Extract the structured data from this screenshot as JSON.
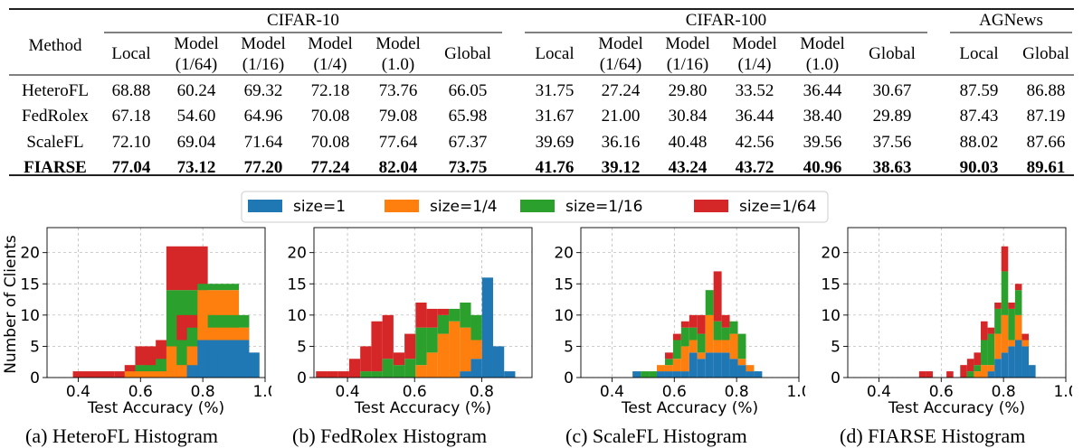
{
  "table": {
    "method_header": "Method",
    "groups": [
      {
        "name": "CIFAR-10",
        "cols": [
          "Local",
          "Model|(1/64)",
          "Model|(1/16)",
          "Model|(1/4)",
          "Model|(1.0)",
          "Global"
        ]
      },
      {
        "name": "CIFAR-100",
        "cols": [
          "Local",
          "Model|(1/64)",
          "Model|(1/16)",
          "Model|(1/4)",
          "Model|(1.0)",
          "Global"
        ]
      },
      {
        "name": "AGNews",
        "cols": [
          "Local",
          "Global"
        ]
      }
    ],
    "rows": [
      {
        "method": "HeteroFL",
        "bold": false,
        "values": [
          "68.88",
          "60.24",
          "69.32",
          "72.18",
          "73.76",
          "66.05",
          "31.75",
          "27.24",
          "29.80",
          "33.52",
          "36.44",
          "30.67",
          "87.59",
          "86.88"
        ]
      },
      {
        "method": "FedRolex",
        "bold": false,
        "values": [
          "67.18",
          "54.60",
          "64.96",
          "70.08",
          "79.08",
          "65.98",
          "31.67",
          "21.00",
          "30.84",
          "36.44",
          "38.40",
          "29.89",
          "87.43",
          "87.19"
        ]
      },
      {
        "method": "ScaleFL",
        "bold": false,
        "values": [
          "72.10",
          "69.04",
          "71.64",
          "70.08",
          "77.64",
          "67.37",
          "39.69",
          "36.16",
          "40.48",
          "42.56",
          "39.56",
          "37.56",
          "88.02",
          "87.66"
        ]
      },
      {
        "method": "FIARSE",
        "bold": true,
        "values": [
          "77.04",
          "73.12",
          "77.20",
          "77.24",
          "82.04",
          "73.75",
          "41.76",
          "39.12",
          "43.24",
          "43.72",
          "40.96",
          "38.63",
          "90.03",
          "89.61"
        ]
      }
    ]
  },
  "legend": [
    {
      "label": "size=1",
      "color": "#1f77b4"
    },
    {
      "label": "size=1/4",
      "color": "#ff7f0e"
    },
    {
      "label": "size=1/16",
      "color": "#2ca02c"
    },
    {
      "label": "size=1/64",
      "color": "#d62728"
    }
  ],
  "chart_data": [
    {
      "type": "bar",
      "stacked": true,
      "xlabel": "Test Accuracy (%)",
      "ylabel": "Number of Clients",
      "xlim": [
        0.3,
        1.0
      ],
      "ylim": [
        0,
        24
      ],
      "xticks": [
        "0.4",
        "0.6",
        "0.8",
        "1.0"
      ],
      "yticks": [
        "0",
        "5",
        "10",
        "15",
        "20"
      ],
      "caption": "(a) HeteroFL Histogram",
      "bins": [
        {
          "x": 0.383,
          "s1": 0,
          "s4": 0,
          "s16": 0,
          "s64": 1
        },
        {
          "x": 0.516,
          "s1": 0,
          "s4": 0,
          "s16": 0,
          "s64": 1
        },
        {
          "x": 0.549,
          "s1": 0,
          "s4": 1,
          "s16": 0,
          "s64": 1
        },
        {
          "x": 0.583,
          "s1": 0,
          "s4": 1,
          "s16": 1,
          "s64": 3
        },
        {
          "x": 0.616,
          "s1": 0,
          "s4": 1,
          "s16": 1,
          "s64": 2
        },
        {
          "x": 0.649,
          "s1": 0,
          "s4": 1,
          "s16": 2,
          "s64": 3
        },
        {
          "x": 0.683,
          "s1": 0,
          "s4": 5,
          "s16": 9,
          "s64": 7
        },
        {
          "x": 0.716,
          "s1": 0,
          "s4": 2,
          "s16": 4,
          "s64": 4
        },
        {
          "x": 0.749,
          "s1": 2,
          "s4": 3,
          "s16": 3,
          "s64": 1
        },
        {
          "x": 0.783,
          "s1": 6,
          "s4": 8,
          "s16": 1,
          "s64": 0
        },
        {
          "x": 0.816,
          "s1": 6,
          "s4": 2,
          "s16": 2,
          "s64": 0
        },
        {
          "x": 0.849,
          "s1": 4,
          "s4": 0,
          "s16": 0,
          "s64": 0
        }
      ]
    },
    {
      "type": "bar",
      "stacked": true,
      "xlabel": "Test Accuracy (%)",
      "ylabel": "",
      "xlim": [
        0.3,
        0.95
      ],
      "ylim": [
        0,
        24
      ],
      "xticks": [
        "0.4",
        "0.6",
        "0.8"
      ],
      "yticks": [
        "0",
        "5",
        "10",
        "15",
        "20"
      ],
      "caption": "(b) FedRolex Histogram",
      "bins": [
        {
          "x": 0.306,
          "s1": 0,
          "s4": 0,
          "s16": 0,
          "s64": 1
        },
        {
          "x": 0.339,
          "s1": 0,
          "s4": 0,
          "s16": 0,
          "s64": 1
        },
        {
          "x": 0.372,
          "s1": 0,
          "s4": 0,
          "s16": 0,
          "s64": 1
        },
        {
          "x": 0.405,
          "s1": 0,
          "s4": 0,
          "s16": 0,
          "s64": 3
        },
        {
          "x": 0.438,
          "s1": 0,
          "s4": 0,
          "s16": 1,
          "s64": 4
        },
        {
          "x": 0.471,
          "s1": 0,
          "s4": 0,
          "s16": 1,
          "s64": 8
        },
        {
          "x": 0.504,
          "s1": 0,
          "s4": 0,
          "s16": 3,
          "s64": 7
        },
        {
          "x": 0.537,
          "s1": 0,
          "s4": 0,
          "s16": 2,
          "s64": 2
        },
        {
          "x": 0.57,
          "s1": 0,
          "s4": 0,
          "s16": 3,
          "s64": 4
        },
        {
          "x": 0.603,
          "s1": 0,
          "s4": 2,
          "s16": 6,
          "s64": 4
        },
        {
          "x": 0.636,
          "s1": 0,
          "s4": 4,
          "s16": 4,
          "s64": 3
        },
        {
          "x": 0.669,
          "s1": 0,
          "s4": 7,
          "s16": 3,
          "s64": 1
        },
        {
          "x": 0.702,
          "s1": 0,
          "s4": 9,
          "s16": 2,
          "s64": 0
        },
        {
          "x": 0.735,
          "s1": 1,
          "s4": 7,
          "s16": 4,
          "s64": 0
        },
        {
          "x": 0.768,
          "s1": 3,
          "s4": 3,
          "s16": 4,
          "s64": 0
        },
        {
          "x": 0.801,
          "s1": 16,
          "s4": 0,
          "s16": 0,
          "s64": 0
        },
        {
          "x": 0.834,
          "s1": 5,
          "s4": 0,
          "s16": 0,
          "s64": 0
        },
        {
          "x": 0.867,
          "s1": 1,
          "s4": 0,
          "s16": 0,
          "s64": 0
        }
      ]
    },
    {
      "type": "bar",
      "stacked": true,
      "xlabel": "Test Accuracy (%)",
      "ylabel": "",
      "xlim": [
        0.3,
        1.0
      ],
      "ylim": [
        0,
        24
      ],
      "xticks": [
        "0.4",
        "0.6",
        "0.8",
        "1.0"
      ],
      "yticks": [
        "0",
        "5",
        "10",
        "15",
        "20"
      ],
      "caption": "(c) ScaleFL Histogram",
      "bins": [
        {
          "x": 0.466,
          "s1": 1,
          "s4": 0,
          "s16": 0,
          "s64": 0
        },
        {
          "x": 0.492,
          "s1": 0,
          "s4": 0,
          "s16": 1,
          "s64": 0
        },
        {
          "x": 0.518,
          "s1": 0,
          "s4": 0,
          "s16": 1,
          "s64": 0
        },
        {
          "x": 0.544,
          "s1": 1,
          "s4": 1,
          "s16": 0,
          "s64": 0
        },
        {
          "x": 0.57,
          "s1": 1,
          "s4": 1,
          "s16": 1,
          "s64": 1
        },
        {
          "x": 0.596,
          "s1": 1,
          "s4": 2,
          "s16": 3,
          "s64": 1
        },
        {
          "x": 0.622,
          "s1": 1,
          "s4": 4,
          "s16": 3,
          "s64": 1
        },
        {
          "x": 0.648,
          "s1": 4,
          "s4": 2,
          "s16": 2,
          "s64": 2
        },
        {
          "x": 0.674,
          "s1": 3,
          "s4": 1,
          "s16": 3,
          "s64": 3
        },
        {
          "x": 0.7,
          "s1": 4,
          "s4": 6,
          "s16": 4,
          "s64": 0
        },
        {
          "x": 0.726,
          "s1": 4,
          "s4": 2,
          "s16": 3,
          "s64": 8
        },
        {
          "x": 0.752,
          "s1": 4,
          "s4": 2,
          "s16": 2,
          "s64": 2
        },
        {
          "x": 0.778,
          "s1": 3,
          "s4": 4,
          "s16": 2,
          "s64": 0
        },
        {
          "x": 0.804,
          "s1": 2,
          "s4": 1,
          "s16": 4,
          "s64": 0
        },
        {
          "x": 0.83,
          "s1": 1,
          "s4": 1,
          "s16": 0,
          "s64": 0
        },
        {
          "x": 0.856,
          "s1": 1,
          "s4": 0,
          "s16": 0,
          "s64": 0
        }
      ]
    },
    {
      "type": "bar",
      "stacked": true,
      "xlabel": "Test Accuracy (%)",
      "ylabel": "",
      "xlim": [
        0.3,
        1.0
      ],
      "ylim": [
        0,
        24
      ],
      "xticks": [
        "0.4",
        "0.6",
        "0.8",
        "1.0"
      ],
      "yticks": [
        "0",
        "5",
        "10",
        "15",
        "20"
      ],
      "caption": "(d) FIARSE Histogram",
      "bins": [
        {
          "x": 0.529,
          "s1": 0,
          "s4": 0,
          "s16": 0,
          "s64": 1
        },
        {
          "x": 0.551,
          "s1": 0,
          "s4": 0,
          "s16": 0,
          "s64": 1
        },
        {
          "x": 0.617,
          "s1": 0,
          "s4": 0,
          "s16": 0,
          "s64": 1
        },
        {
          "x": 0.661,
          "s1": 0,
          "s4": 0,
          "s16": 0,
          "s64": 2
        },
        {
          "x": 0.683,
          "s1": 0,
          "s4": 0,
          "s16": 1,
          "s64": 2
        },
        {
          "x": 0.705,
          "s1": 0,
          "s4": 1,
          "s16": 1,
          "s64": 2
        },
        {
          "x": 0.727,
          "s1": 0,
          "s4": 2,
          "s16": 4,
          "s64": 3
        },
        {
          "x": 0.749,
          "s1": 1,
          "s4": 1,
          "s16": 5,
          "s64": 1
        },
        {
          "x": 0.771,
          "s1": 3,
          "s4": 4,
          "s16": 4,
          "s64": 1
        },
        {
          "x": 0.793,
          "s1": 4,
          "s4": 6,
          "s16": 7,
          "s64": 4
        },
        {
          "x": 0.815,
          "s1": 5,
          "s4": 1,
          "s16": 5,
          "s64": 1
        },
        {
          "x": 0.837,
          "s1": 6,
          "s4": 4,
          "s16": 4,
          "s64": 1
        },
        {
          "x": 0.859,
          "s1": 5,
          "s4": 1,
          "s16": 0,
          "s64": 1
        },
        {
          "x": 0.881,
          "s1": 2,
          "s4": 0,
          "s16": 0,
          "s64": 0
        }
      ]
    }
  ]
}
